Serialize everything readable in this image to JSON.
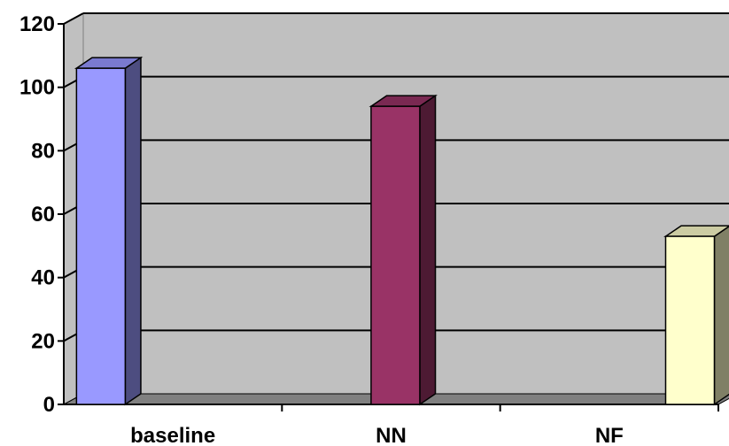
{
  "chart_data": {
    "type": "bar",
    "categories": [
      "baseline",
      "NN",
      "NF"
    ],
    "values": [
      106,
      94,
      53
    ],
    "ylim": [
      0,
      120
    ],
    "yticks": [
      0,
      20,
      40,
      60,
      80,
      100,
      120
    ],
    "grid": true,
    "three_d": true,
    "colors": {
      "plot_wall": "#c0c0c0",
      "plot_floor": "#808080",
      "bars": [
        {
          "front": "#9999ff",
          "side": "#4d4d80",
          "top": "#7a7ad0"
        },
        {
          "front": "#993366",
          "side": "#4d1a33",
          "top": "#7a2952"
        },
        {
          "front": "#ffffcc",
          "side": "#808066",
          "top": "#cccca3"
        }
      ]
    }
  }
}
